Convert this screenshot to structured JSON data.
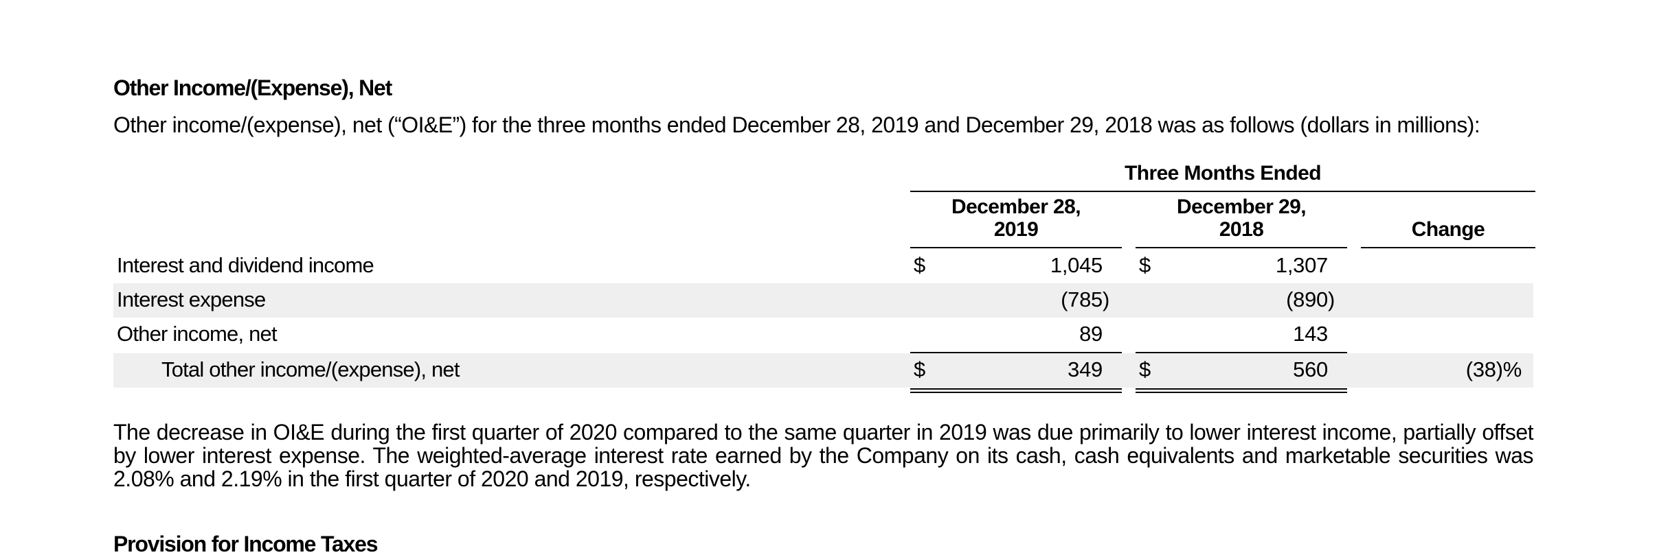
{
  "section1": {
    "heading": "Other Income/(Expense), Net",
    "intro": "Other income/(expense), net (“OI&E”) for the three months ended December 28, 2019 and December 29, 2018 was as follows (dollars in millions):"
  },
  "table": {
    "group_header": "Three Months Ended",
    "col1_line1": "December 28,",
    "col1_line2": "2019",
    "col2_line1": "December 29,",
    "col2_line2": "2018",
    "col3": "Change",
    "currency": "$",
    "rows": [
      {
        "label": "Interest and dividend income",
        "v2019": "1,045",
        "v2018": "1,307",
        "change": ""
      },
      {
        "label": "Interest expense",
        "v2019": "(785)",
        "v2018": "(890)",
        "change": ""
      },
      {
        "label": "Other income, net",
        "v2019": "89",
        "v2018": "143",
        "change": ""
      },
      {
        "label": "Total other income/(expense), net",
        "v2019": "349",
        "v2018": "560",
        "change": "(38)%"
      }
    ]
  },
  "body": {
    "line1": "The decrease in OI&E during the first quarter of 2020 compared to the same quarter in 2019 was due primarily to lower interest income, partially offset",
    "line2": "by lower interest expense. The weighted-average interest rate earned by the Company on its cash, cash equivalents and marketable securities was",
    "line3": "2.08% and 2.19% in the first quarter of 2020 and 2019, respectively."
  },
  "section2": {
    "heading": "Provision for Income Taxes"
  }
}
